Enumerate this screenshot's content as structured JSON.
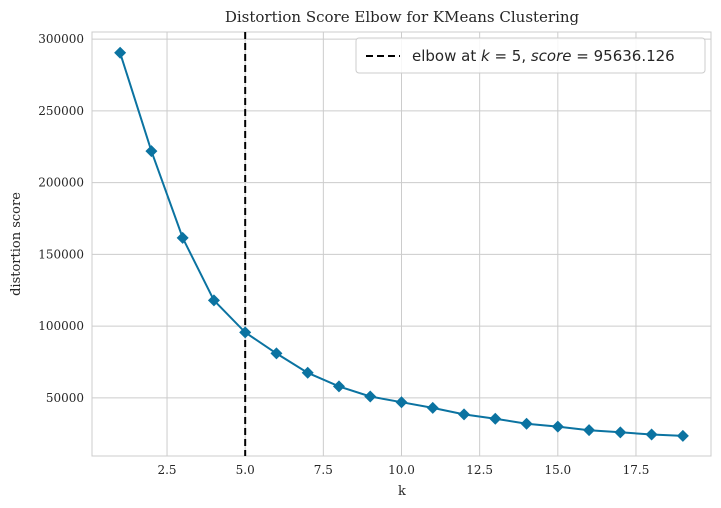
{
  "chart_data": {
    "type": "line",
    "title": "Distortion Score Elbow for KMeans Clustering",
    "xlabel": "k",
    "ylabel": "distortion score",
    "x": [
      1,
      2,
      3,
      4,
      5,
      6,
      7,
      8,
      9,
      10,
      11,
      12,
      13,
      14,
      15,
      16,
      17,
      18,
      19
    ],
    "series": [
      {
        "values": [
          290500,
          222000,
          161500,
          118000,
          95636,
          81000,
          67500,
          58000,
          51000,
          47000,
          43000,
          38500,
          35500,
          32000,
          30000,
          27500,
          26000,
          24500,
          23500
        ]
      }
    ],
    "xlim": [
      0.1,
      19.9
    ],
    "ylim": [
      9500,
      305000
    ],
    "x_ticks": [
      2.5,
      5.0,
      7.5,
      10.0,
      12.5,
      15.0,
      17.5
    ],
    "x_tick_labels": [
      "2.5",
      "5.0",
      "7.5",
      "10.0",
      "12.5",
      "15.0",
      "17.5"
    ],
    "y_ticks": [
      50000,
      100000,
      150000,
      200000,
      250000,
      300000
    ],
    "y_tick_labels": [
      "50000",
      "100000",
      "150000",
      "200000",
      "250000",
      "300000"
    ],
    "elbow": {
      "k": 5,
      "score": 95636.126,
      "legend_prefix": "elbow at ",
      "legend_k_var": "k",
      "legend_k_eq": " = 5, ",
      "legend_score_var": "score",
      "legend_score_eq": " = 95636.126"
    },
    "grid": true,
    "legend_position": "top-right",
    "colors": {
      "line": "#0b73a1",
      "marker": "#0b73a1",
      "elbow_line": "#000000",
      "grid": "#cccccc",
      "frame": "#cccccc"
    }
  }
}
